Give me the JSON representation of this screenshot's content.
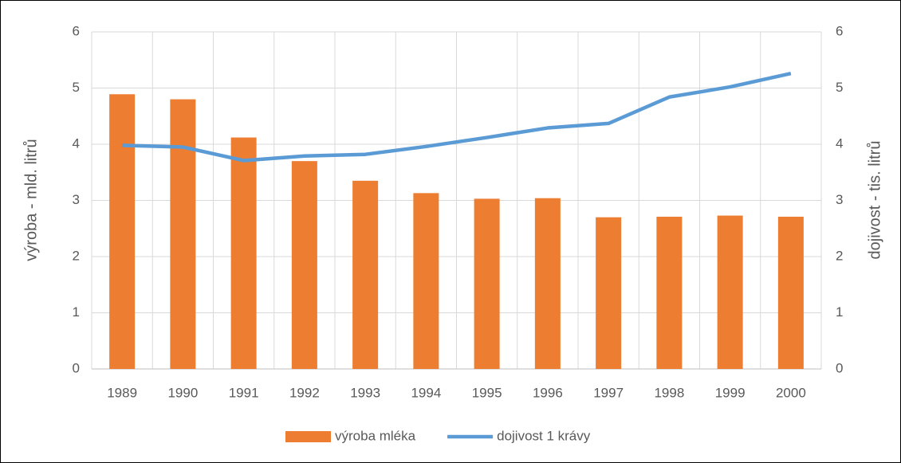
{
  "chart_data": {
    "type": "bar-line",
    "categories": [
      "1989",
      "1990",
      "1991",
      "1992",
      "1993",
      "1994",
      "1995",
      "1996",
      "1997",
      "1998",
      "1999",
      "2000"
    ],
    "series": [
      {
        "name": "výroba mléka",
        "type": "bar",
        "color": "#ed7d31",
        "axis": "y",
        "values": [
          4.89,
          4.8,
          4.12,
          3.7,
          3.35,
          3.13,
          3.03,
          3.04,
          2.7,
          2.71,
          2.73,
          2.71
        ]
      },
      {
        "name": "dojivost 1 krávy",
        "type": "line",
        "color": "#5b9bd5",
        "axis": "y2",
        "values": [
          3.98,
          3.95,
          3.71,
          3.79,
          3.82,
          3.96,
          4.12,
          4.29,
          4.37,
          4.84,
          5.02,
          5.26
        ]
      }
    ],
    "ylabel": "výroba - mld. litrů",
    "y2label": "dojivost - tis. litrů",
    "ylim": [
      0,
      6
    ],
    "yticks": [
      0,
      1,
      2,
      3,
      4,
      5,
      6
    ],
    "y2lim": [
      0,
      6
    ],
    "y2ticks": [
      0,
      1,
      2,
      3,
      4,
      5,
      6
    ],
    "grid": true,
    "legend": "bottom"
  }
}
